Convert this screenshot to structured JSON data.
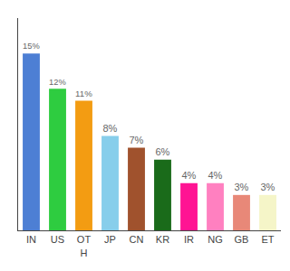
{
  "chart_data": {
    "type": "bar",
    "categories": [
      "IN",
      "US",
      "OT\nH",
      "JP",
      "CN",
      "KR",
      "IR",
      "NG",
      "GB",
      "ET"
    ],
    "values": [
      15,
      12,
      11,
      8,
      7,
      6,
      4,
      4,
      3,
      3
    ],
    "value_labels": [
      "15%",
      "12%",
      "11%",
      "8%",
      "7%",
      "6%",
      "4%",
      "4%",
      "3%",
      "3%"
    ],
    "colors": [
      "#4d7fd4",
      "#2ecc40",
      "#f39c12",
      "#87ceeb",
      "#a0522d",
      "#1a6b1a",
      "#ff1493",
      "#ff80c0",
      "#e88878",
      "#f5f5c8"
    ],
    "ylim": [
      0,
      18
    ],
    "yticks": [],
    "grid": false,
    "data_labels": true,
    "tick_labels": "x"
  }
}
